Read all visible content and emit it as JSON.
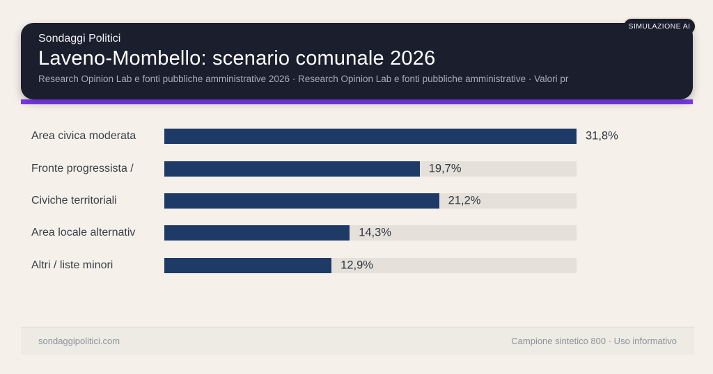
{
  "badge": {
    "label": "SIMULAZIONE AI"
  },
  "header": {
    "brand": "Sondaggi Politici",
    "title": "Laveno-Mombello: scenario comunale 2026",
    "subtitle": "Research Opinion Lab e fonti pubbliche amministrative 2026 · Research Opinion Lab e fonti pubbliche amministrative · Valori pr"
  },
  "chart_data": {
    "type": "bar",
    "orientation": "horizontal",
    "title": "Laveno-Mombello: scenario comunale 2026",
    "categories": [
      "Area civica moderata",
      "Fronte progressista /",
      "Civiche territoriali",
      "Area locale alternativ",
      "Altri / liste minori"
    ],
    "values": [
      31.8,
      19.7,
      21.2,
      14.3,
      12.9
    ],
    "value_labels": [
      "31,8%",
      "19,7%",
      "21,2%",
      "14,3%",
      "12,9%"
    ],
    "unit": "%",
    "decimal_style": "comma",
    "xlim": [
      0,
      31.8
    ],
    "bars_scaled_to_max_value": true,
    "grid": false,
    "legend": false,
    "bar_color": "#1e3a66",
    "track_color": "#e5e1da"
  },
  "footer": {
    "left": "sondaggipolitici.com",
    "right": "Campione sintetico 800 · Uso informativo"
  },
  "colors": {
    "page_background": "#f5f0e9",
    "card_background": "#1b1e2d",
    "accent_purple": "#7c3aed",
    "bar_navy": "#1e3a66",
    "bar_track": "#e5e1da",
    "label_text": "#3a3e48",
    "footer_background": "#edebe4"
  }
}
